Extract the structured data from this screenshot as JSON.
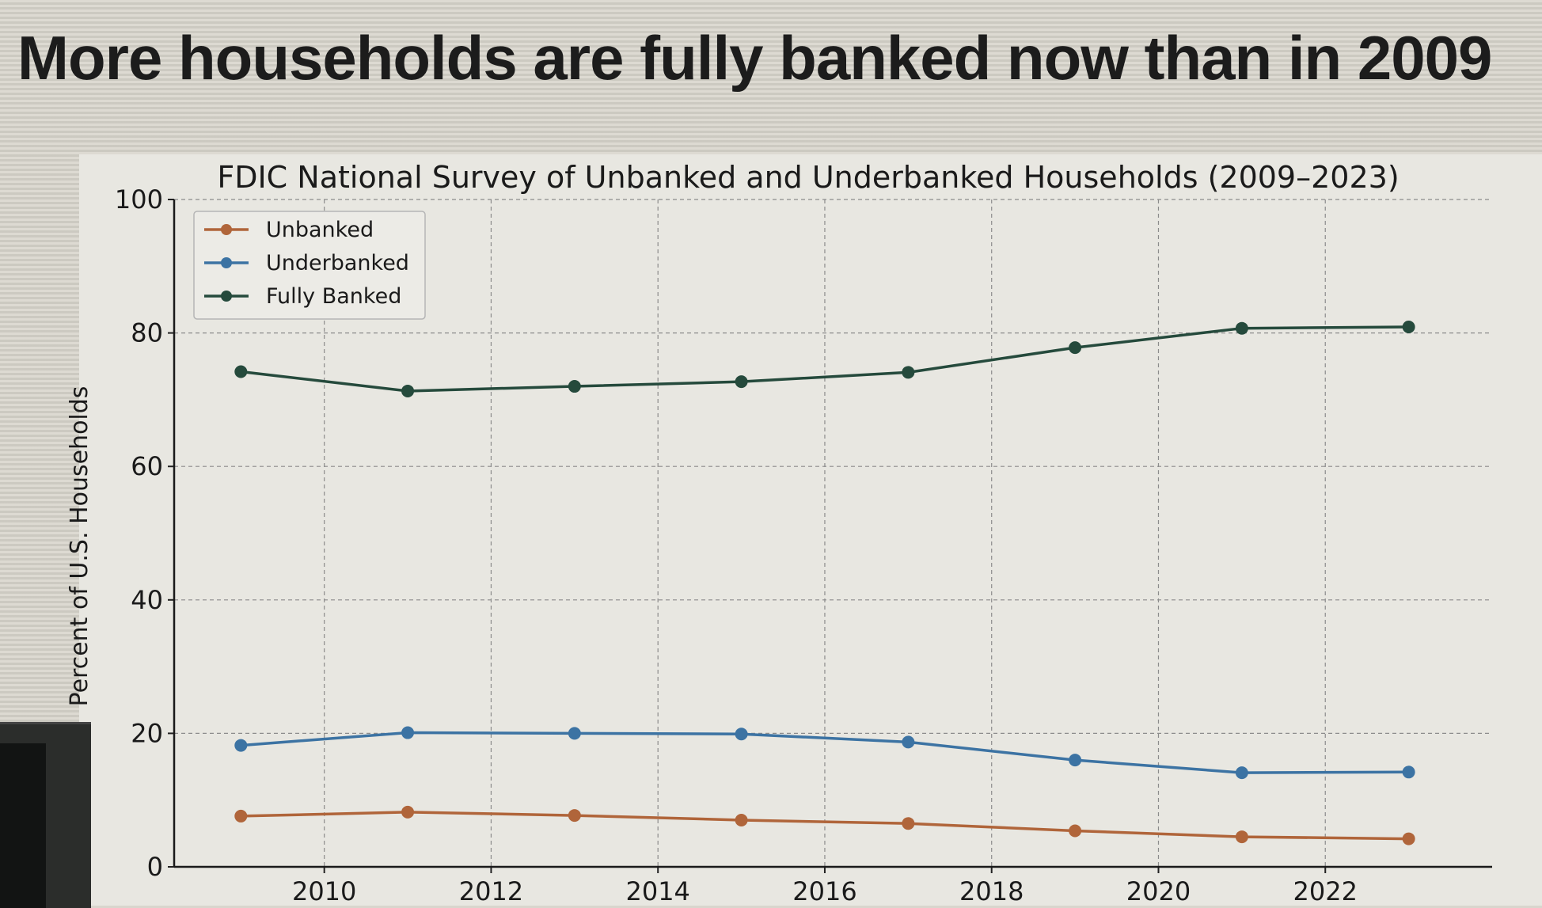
{
  "headline": "More households are fully banked now than in 2009",
  "chart_data": {
    "type": "line",
    "title": "FDIC National Survey of Unbanked and Underbanked Households (2009–2023)",
    "xlabel": "",
    "ylabel": "Percent of U.S. Households",
    "x": [
      2009,
      2011,
      2013,
      2015,
      2017,
      2019,
      2021,
      2023
    ],
    "xlim": [
      2008.2,
      2024
    ],
    "ylim": [
      0,
      100
    ],
    "xticks": [
      "2010",
      "2012",
      "2014",
      "2016",
      "2018",
      "2020",
      "2022"
    ],
    "yticks": [
      "0",
      "20",
      "40",
      "60",
      "80",
      "100"
    ],
    "grid": true,
    "legend_position": "top-left",
    "series": [
      {
        "name": "Unbanked",
        "color": "#b0653a",
        "values": [
          7.6,
          8.2,
          7.7,
          7.0,
          6.5,
          5.4,
          4.5,
          4.2
        ]
      },
      {
        "name": "Underbanked",
        "color": "#3c73a3",
        "values": [
          18.2,
          20.1,
          20.0,
          19.9,
          18.7,
          16.0,
          14.1,
          14.2
        ]
      },
      {
        "name": "Fully Banked",
        "color": "#254a3c",
        "values": [
          74.2,
          71.3,
          72.0,
          72.7,
          74.1,
          77.8,
          80.7,
          80.9
        ]
      }
    ]
  }
}
